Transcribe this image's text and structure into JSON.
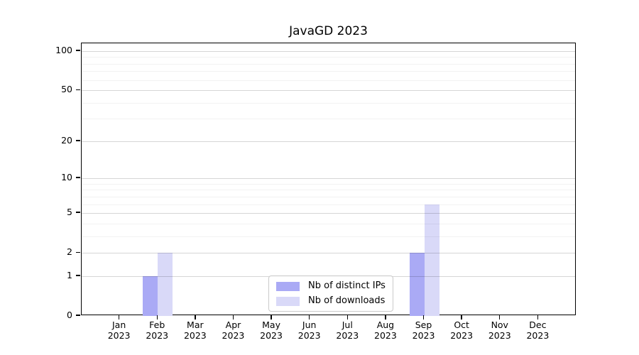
{
  "chart_data": {
    "type": "bar",
    "title": "JavaGD 2023",
    "x_axis": {
      "categories": [
        "Jan",
        "Feb",
        "Mar",
        "Apr",
        "May",
        "Jun",
        "Jul",
        "Aug",
        "Sep",
        "Oct",
        "Nov",
        "Dec"
      ],
      "year_label": "2023"
    },
    "y_axis": {
      "scale": "log1p",
      "tick_values": [
        0,
        1,
        2,
        5,
        10,
        20,
        50,
        100
      ],
      "minor_gridline_values": [
        3,
        4,
        6,
        7,
        8,
        9,
        30,
        40,
        60,
        70,
        80,
        90
      ],
      "ylim": [
        0,
        115
      ],
      "grid": true
    },
    "series": [
      {
        "name": "Nb of distinct IPs",
        "color": "#aaaaf5",
        "values": [
          0,
          1,
          0,
          0,
          0,
          0,
          0,
          0,
          2,
          0,
          0,
          0
        ]
      },
      {
        "name": "Nb of downloads",
        "color": "#d9d9f8",
        "values": [
          0,
          2,
          0,
          0,
          0,
          0,
          0,
          0,
          6,
          0,
          0,
          0
        ]
      }
    ],
    "legend": {
      "position": "bottom-center-inside",
      "entries": [
        "Nb of distinct IPs",
        "Nb of downloads"
      ]
    }
  }
}
